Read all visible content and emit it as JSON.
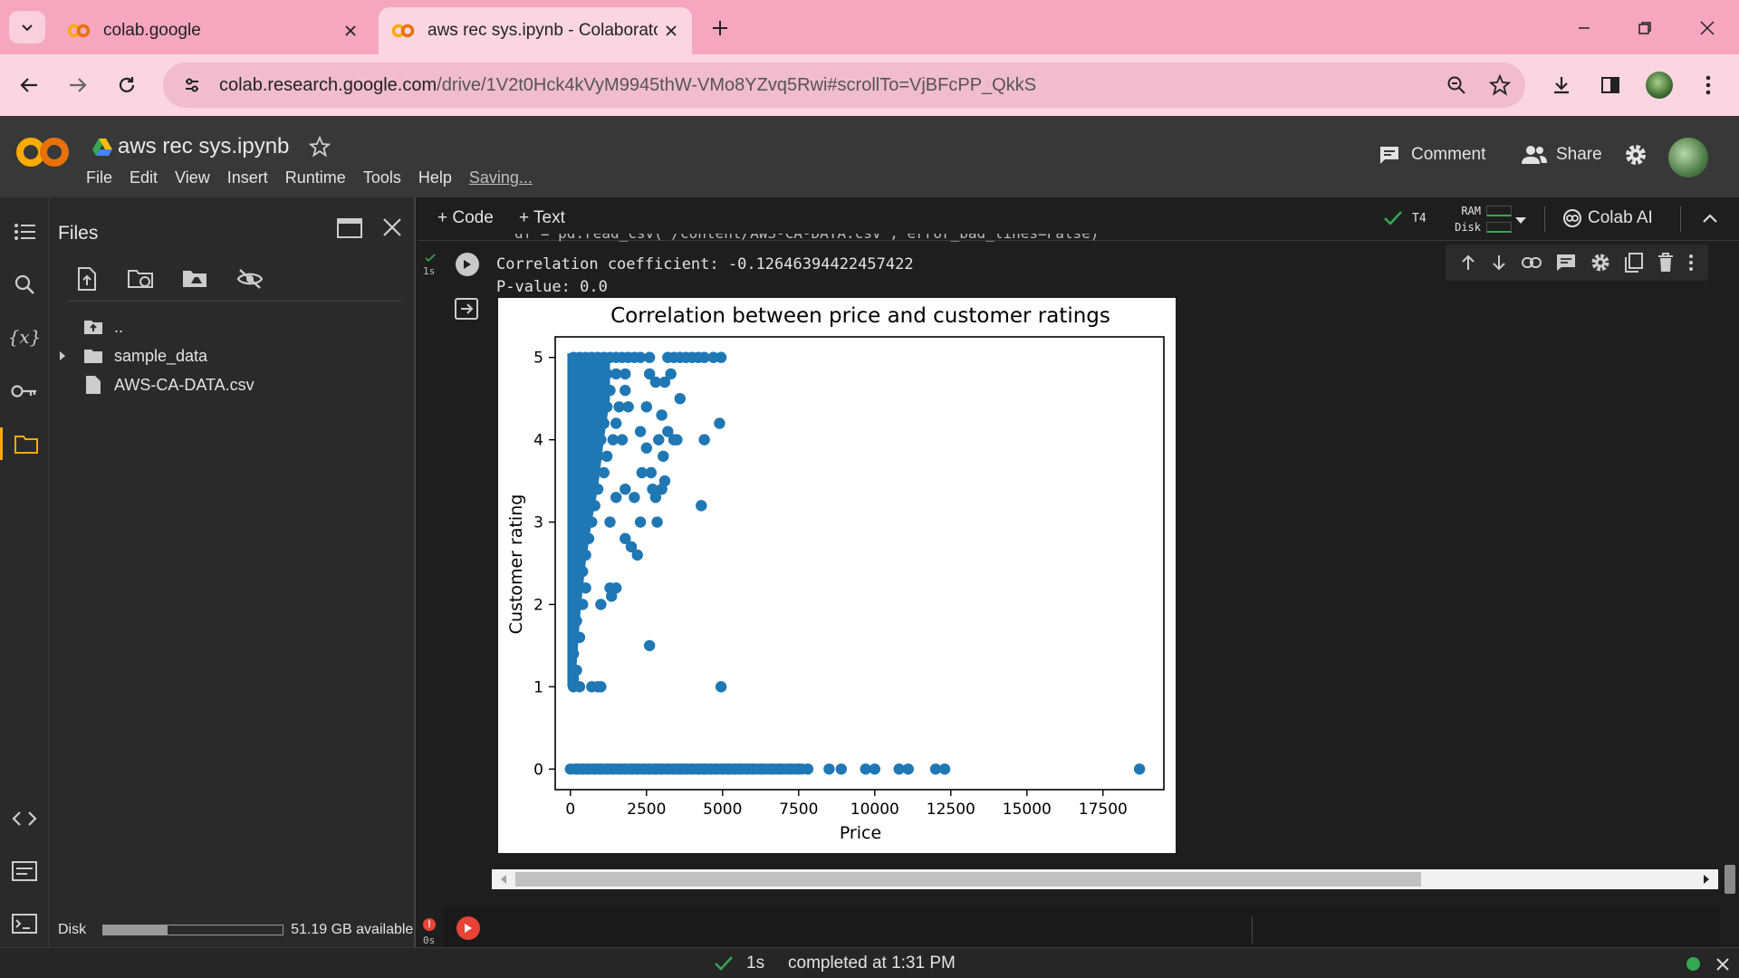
{
  "browser": {
    "tabs": [
      {
        "title": "colab.google",
        "active": false
      },
      {
        "title": "aws rec sys.ipynb - Colaborator",
        "active": true
      }
    ],
    "url_host": "colab.research.google.com",
    "url_path": "/drive/1V2t0Hck4kVyM9945thW-VMo8YZvq5Rwi#scrollTo=VjBFcPP_QkkS"
  },
  "colab": {
    "notebook_name": "aws rec sys.ipynb",
    "menu": [
      "File",
      "Edit",
      "View",
      "Insert",
      "Runtime",
      "Tools",
      "Help"
    ],
    "saving_label": "Saving...",
    "comment_label": "Comment",
    "share_label": "Share",
    "add_code_label": "+ Code",
    "add_text_label": "+ Text",
    "runtime_type": "T4",
    "ram_label": "RAM",
    "disk_label": "Disk",
    "colab_ai_label": "Colab AI"
  },
  "files_panel": {
    "title": "Files",
    "items": [
      {
        "name": "..",
        "type": "parent"
      },
      {
        "name": "sample_data",
        "type": "folder"
      },
      {
        "name": "AWS-CA-DATA.csv",
        "type": "file"
      }
    ],
    "disk_label": "Disk",
    "disk_available": "51.19 GB available",
    "disk_used_fraction": 0.36
  },
  "cell": {
    "status": "1s",
    "clipped_code": "df = pd.read_csv('/content/AWS-CA-DATA.csv', error_bad_lines=False)",
    "output_lines": [
      "Correlation coefficient: -0.12646394422457422",
      "P-value: 0.0"
    ]
  },
  "cell2": {
    "status": "0s"
  },
  "status_bar": {
    "duration": "1s",
    "completed_text": "completed at 1:31 PM"
  },
  "chart_data": {
    "type": "scatter",
    "title": "Correlation between price and customer ratings",
    "xlabel": "Price",
    "ylabel": "Customer rating",
    "xlim": [
      -500,
      19500
    ],
    "ylim": [
      -0.25,
      5.25
    ],
    "xticks": [
      0,
      2500,
      5000,
      7500,
      10000,
      12500,
      15000,
      17500
    ],
    "yticks": [
      0,
      1,
      2,
      3,
      4,
      5
    ],
    "color": "#1f77b4",
    "points": [
      [
        100,
        5
      ],
      [
        300,
        5
      ],
      [
        500,
        5
      ],
      [
        700,
        5
      ],
      [
        900,
        5
      ],
      [
        1100,
        5
      ],
      [
        1300,
        5
      ],
      [
        1500,
        5
      ],
      [
        1700,
        5
      ],
      [
        1900,
        5
      ],
      [
        2100,
        5
      ],
      [
        2300,
        5
      ],
      [
        2600,
        5
      ],
      [
        3200,
        5
      ],
      [
        3400,
        5
      ],
      [
        3600,
        5
      ],
      [
        3800,
        5
      ],
      [
        4000,
        5
      ],
      [
        4200,
        5
      ],
      [
        4400,
        5
      ],
      [
        4700,
        5
      ],
      [
        4950,
        5
      ],
      [
        1500,
        4.8
      ],
      [
        1800,
        4.8
      ],
      [
        3300,
        4.8
      ],
      [
        2600,
        4.8
      ],
      [
        2800,
        4.7
      ],
      [
        3100,
        4.7
      ],
      [
        3600,
        4.5
      ],
      [
        2500,
        4.4
      ],
      [
        3000,
        4.3
      ],
      [
        4900,
        4.2
      ],
      [
        2300,
        4.1
      ],
      [
        3200,
        4.1
      ],
      [
        3400,
        4.0
      ],
      [
        2900,
        4.0
      ],
      [
        4400,
        4.0
      ],
      [
        3500,
        4.0
      ],
      [
        3050,
        3.8
      ],
      [
        2500,
        3.9
      ],
      [
        2650,
        3.6
      ],
      [
        3100,
        3.5
      ],
      [
        2350,
        3.6
      ],
      [
        2700,
        3.4
      ],
      [
        3000,
        3.4
      ],
      [
        2800,
        3.3
      ],
      [
        1500,
        3.3
      ],
      [
        2100,
        3.3
      ],
      [
        1800,
        3.4
      ],
      [
        4300,
        3.2
      ],
      [
        1300,
        3.0
      ],
      [
        2300,
        3.0
      ],
      [
        2850,
        3.0
      ],
      [
        1800,
        2.8
      ],
      [
        2000,
        2.7
      ],
      [
        2200,
        2.6
      ],
      [
        1500,
        2.2
      ],
      [
        1300,
        2.2
      ],
      [
        1350,
        2.1
      ],
      [
        1000,
        2.0
      ],
      [
        2600,
        1.5
      ],
      [
        4950,
        1.0
      ],
      [
        700,
        1.0
      ],
      [
        900,
        1.0
      ],
      [
        1000,
        1.0
      ],
      [
        200,
        4.8
      ],
      [
        400,
        4.8
      ],
      [
        600,
        4.8
      ],
      [
        800,
        4.8
      ],
      [
        1000,
        4.8
      ],
      [
        1200,
        4.8
      ],
      [
        300,
        4.6
      ],
      [
        500,
        4.6
      ],
      [
        700,
        4.6
      ],
      [
        900,
        4.6
      ],
      [
        1100,
        4.6
      ],
      [
        1300,
        4.6
      ],
      [
        1800,
        4.6
      ],
      [
        200,
        4.4
      ],
      [
        400,
        4.4
      ],
      [
        600,
        4.4
      ],
      [
        800,
        4.4
      ],
      [
        1000,
        4.4
      ],
      [
        1200,
        4.4
      ],
      [
        1600,
        4.4
      ],
      [
        1900,
        4.4
      ],
      [
        300,
        4.2
      ],
      [
        500,
        4.2
      ],
      [
        700,
        4.2
      ],
      [
        900,
        4.2
      ],
      [
        1100,
        4.2
      ],
      [
        1500,
        4.2
      ],
      [
        200,
        4.0
      ],
      [
        400,
        4.0
      ],
      [
        600,
        4.0
      ],
      [
        800,
        4.0
      ],
      [
        1000,
        4.0
      ],
      [
        1400,
        4.0
      ],
      [
        1700,
        4.0
      ],
      [
        300,
        3.8
      ],
      [
        500,
        3.8
      ],
      [
        700,
        3.8
      ],
      [
        900,
        3.8
      ],
      [
        1200,
        3.8
      ],
      [
        200,
        3.6
      ],
      [
        400,
        3.6
      ],
      [
        600,
        3.6
      ],
      [
        800,
        3.6
      ],
      [
        1100,
        3.6
      ],
      [
        300,
        3.4
      ],
      [
        500,
        3.4
      ],
      [
        700,
        3.4
      ],
      [
        900,
        3.4
      ],
      [
        200,
        3.2
      ],
      [
        400,
        3.2
      ],
      [
        600,
        3.2
      ],
      [
        800,
        3.2
      ],
      [
        300,
        3.0
      ],
      [
        500,
        3.0
      ],
      [
        700,
        3.0
      ],
      [
        200,
        2.8
      ],
      [
        400,
        2.8
      ],
      [
        600,
        2.8
      ],
      [
        300,
        2.6
      ],
      [
        500,
        2.6
      ],
      [
        200,
        2.4
      ],
      [
        400,
        2.4
      ],
      [
        300,
        2.2
      ],
      [
        500,
        2.2
      ],
      [
        200,
        2.0
      ],
      [
        400,
        2.0
      ],
      [
        200,
        1.8
      ],
      [
        300,
        1.6
      ],
      [
        100,
        1.4
      ],
      [
        200,
        1.2
      ],
      [
        100,
        1.1
      ],
      [
        300,
        1.0
      ],
      [
        100,
        1.0
      ],
      [
        0,
        0
      ],
      [
        200,
        0
      ],
      [
        400,
        0
      ],
      [
        600,
        0
      ],
      [
        800,
        0
      ],
      [
        1000,
        0
      ],
      [
        1200,
        0
      ],
      [
        1400,
        0
      ],
      [
        1600,
        0
      ],
      [
        1800,
        0
      ],
      [
        2000,
        0
      ],
      [
        2200,
        0
      ],
      [
        2400,
        0
      ],
      [
        2600,
        0
      ],
      [
        2800,
        0
      ],
      [
        3000,
        0
      ],
      [
        3200,
        0
      ],
      [
        3400,
        0
      ],
      [
        3600,
        0
      ],
      [
        3800,
        0
      ],
      [
        4000,
        0
      ],
      [
        4200,
        0
      ],
      [
        4400,
        0
      ],
      [
        4600,
        0
      ],
      [
        4800,
        0
      ],
      [
        5000,
        0
      ],
      [
        5200,
        0
      ],
      [
        5400,
        0
      ],
      [
        5600,
        0
      ],
      [
        5800,
        0
      ],
      [
        6000,
        0
      ],
      [
        6300,
        0
      ],
      [
        6600,
        0
      ],
      [
        6900,
        0
      ],
      [
        7200,
        0
      ],
      [
        7500,
        0
      ],
      [
        7800,
        0
      ],
      [
        8500,
        0
      ],
      [
        8900,
        0
      ],
      [
        9700,
        0
      ],
      [
        10000,
        0
      ],
      [
        10800,
        0
      ],
      [
        11100,
        0
      ],
      [
        12000,
        0
      ],
      [
        12300,
        0
      ],
      [
        18700,
        0
      ]
    ]
  }
}
